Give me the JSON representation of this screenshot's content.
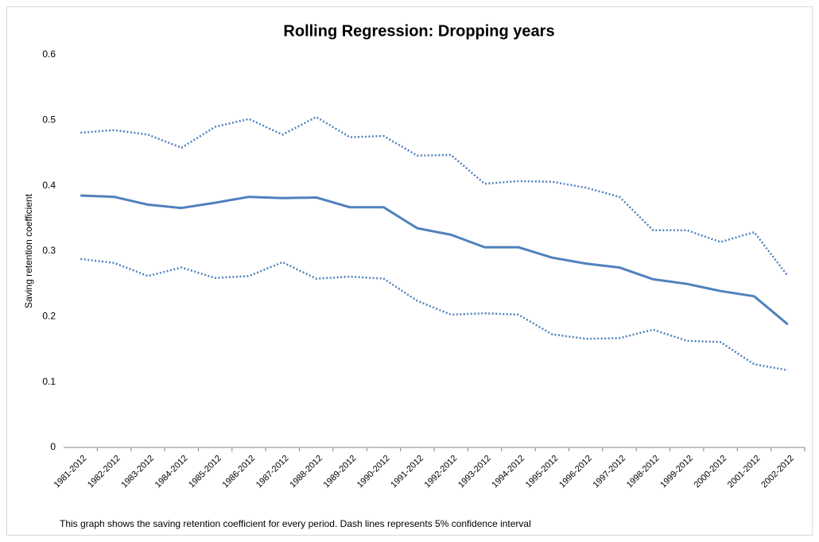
{
  "chart_data": {
    "type": "line",
    "title": "Rolling Regression: Dropping years",
    "y_label": "Saving retention coefficient",
    "note": "This graph shows the saving retention coefficient for every period. Dash lines represents 5% confidence interval",
    "categories": [
      "1981-2012",
      "1982-2012",
      "1983-2012",
      "1984-2012",
      "1985-2012",
      "1986-2012",
      "1987-2012",
      "1988-2012",
      "1989-2012",
      "1990-2012",
      "1991-2012",
      "1992-2012",
      "1993-2012",
      "1994-2012",
      "1995-2012",
      "1996-2012",
      "1997-2012",
      "1998-2012",
      "1999-2012",
      "2000-2012",
      "2001-2012",
      "2002-2012"
    ],
    "series": [
      {
        "color": "#4f81bd",
        "dash": "dotted",
        "values": [
          0.481,
          0.485,
          0.478,
          0.458,
          0.49,
          0.502,
          0.478,
          0.505,
          0.474,
          0.476,
          0.446,
          0.447,
          0.403,
          0.407,
          0.406,
          0.397,
          0.383,
          0.332,
          0.332,
          0.314,
          0.329,
          0.262
        ]
      },
      {
        "color": "#4f81bd",
        "dash": "solid",
        "values": [
          0.385,
          0.383,
          0.371,
          0.366,
          0.374,
          0.383,
          0.381,
          0.382,
          0.367,
          0.367,
          0.335,
          0.325,
          0.306,
          0.306,
          0.29,
          0.281,
          0.275,
          0.257,
          0.25,
          0.239,
          0.231,
          0.188
        ]
      },
      {
        "color": "#4f81bd",
        "dash": "dotted",
        "values": [
          0.288,
          0.282,
          0.262,
          0.275,
          0.259,
          0.262,
          0.283,
          0.258,
          0.261,
          0.258,
          0.224,
          0.203,
          0.205,
          0.203,
          0.173,
          0.166,
          0.167,
          0.18,
          0.163,
          0.161,
          0.127,
          0.118
        ]
      }
    ],
    "ylim": [
      0,
      0.6
    ],
    "yticks": [
      0,
      0.1,
      0.2,
      0.3,
      0.4,
      0.5,
      0.6
    ],
    "grid": false
  }
}
